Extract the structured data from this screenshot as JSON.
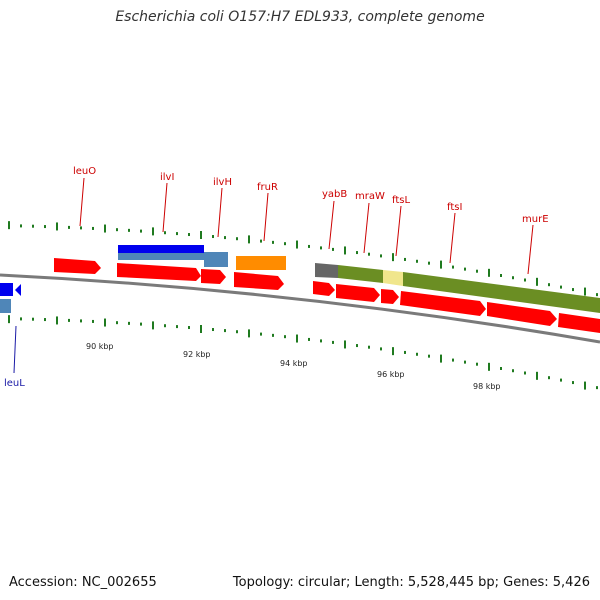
{
  "title": "Escherichia coli O157:H7 EDL933, complete genome",
  "footer": {
    "accession": "Accession: NC_002655",
    "summary": "Topology: circular; Length: 5,528,445 bp; Genes: 5,426"
  },
  "colors": {
    "backbone": "#7a7a7a",
    "cds": "#ff0000",
    "gene_blue": "#0000ee",
    "gene_steel": "#4f86b8",
    "gene_orange": "#ff8c00",
    "gene_gray": "#666666",
    "gene_olive": "#6b8e23",
    "gene_khaki": "#f0e68c",
    "tick_green": "#1f7a1f",
    "label_red": "#cc0000",
    "label_blue": "#1a1aa6"
  },
  "gene_labels": [
    {
      "name": "leuO",
      "strand": "+"
    },
    {
      "name": "ilvI",
      "strand": "+"
    },
    {
      "name": "ilvH",
      "strand": "+"
    },
    {
      "name": "fruR",
      "strand": "+"
    },
    {
      "name": "yabB",
      "strand": "+"
    },
    {
      "name": "mraW",
      "strand": "+"
    },
    {
      "name": "ftsL",
      "strand": "+"
    },
    {
      "name": "ftsI",
      "strand": "+"
    },
    {
      "name": "murE",
      "strand": "+"
    },
    {
      "name": "leuL",
      "strand": "-"
    }
  ],
  "scale_labels": [
    "90 kbp",
    "92 kbp",
    "94 kbp",
    "96 kbp",
    "98 kbp"
  ]
}
